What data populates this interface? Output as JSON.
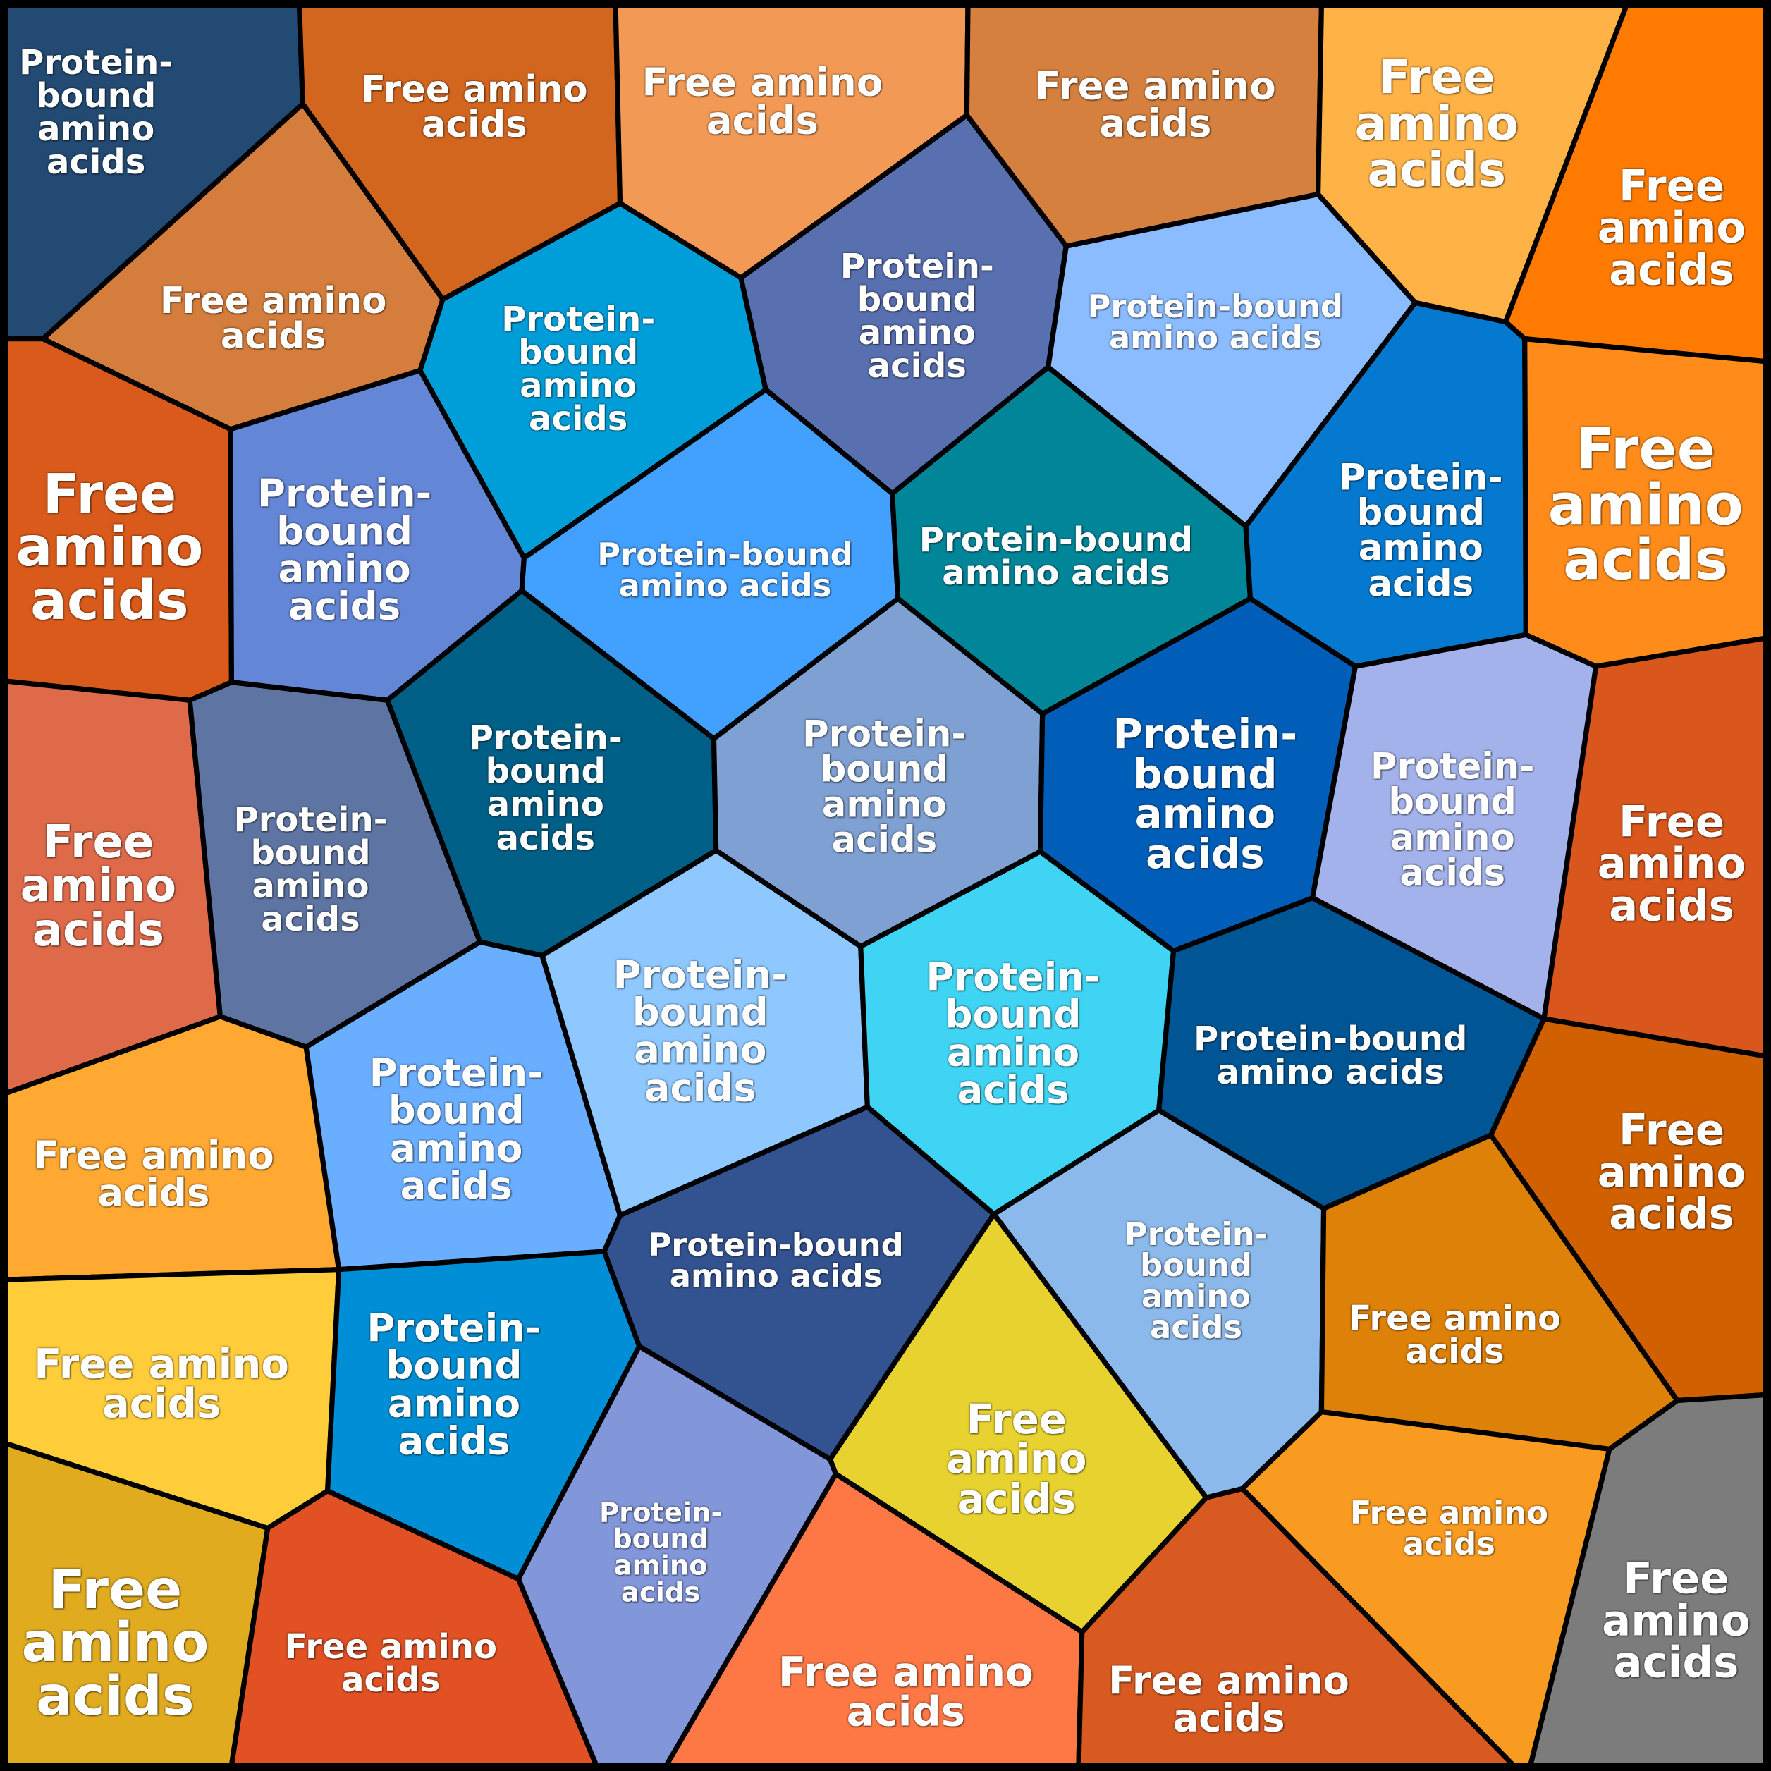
{
  "cells": [
    {
      "label": "Protein-bound amino acids"
    },
    {
      "label": "Free amino acids"
    },
    {
      "label": "Free amino acids"
    },
    {
      "label": "Free amino acids"
    },
    {
      "label": "Free amino acids"
    },
    {
      "label": "Free amino acids"
    },
    {
      "label": "Free amino acids"
    },
    {
      "label": "Protein-bound amino acids"
    },
    {
      "label": "Protein-bound amino acids"
    },
    {
      "label": "Protein-bound amino acids"
    },
    {
      "label": "Free amino acids"
    },
    {
      "label": "Protein-bound amino acids"
    },
    {
      "label": "Protein-bound amino acids"
    },
    {
      "label": "Protein-bound amino acids"
    },
    {
      "label": "Protein-bound amino acids"
    },
    {
      "label": "Free amino acids"
    },
    {
      "label": "Free amino acids"
    },
    {
      "label": "Protein-bound amino acids"
    },
    {
      "label": "Protein-bound amino acids"
    },
    {
      "label": "Protein-bound amino acids"
    },
    {
      "label": "Protein-bound amino acids"
    },
    {
      "label": "Protein-bound amino acids"
    },
    {
      "label": "Free amino acids"
    },
    {
      "label": "Free amino acids"
    },
    {
      "label": "Protein-bound amino acids"
    },
    {
      "label": "Protein-bound amino acids"
    },
    {
      "label": "Protein-bound amino acids"
    },
    {
      "label": "Protein-bound amino acids"
    },
    {
      "label": "Free amino acids"
    },
    {
      "label": "Free amino acids"
    },
    {
      "label": "Protein-bound amino acids"
    },
    {
      "label": "Protein-bound amino acids"
    },
    {
      "label": "Protein-bound amino acids"
    },
    {
      "label": "Free amino acids"
    },
    {
      "label": "Free amino acids"
    },
    {
      "label": "Free amino acids"
    },
    {
      "label": "Protein-bound amino acids"
    },
    {
      "label": "Free amino acids"
    },
    {
      "label": "Free amino acids"
    },
    {
      "label": "Free amino acids"
    },
    {
      "label": "Free amino acids"
    },
    {
      "label": "Free amino acids"
    }
  ]
}
